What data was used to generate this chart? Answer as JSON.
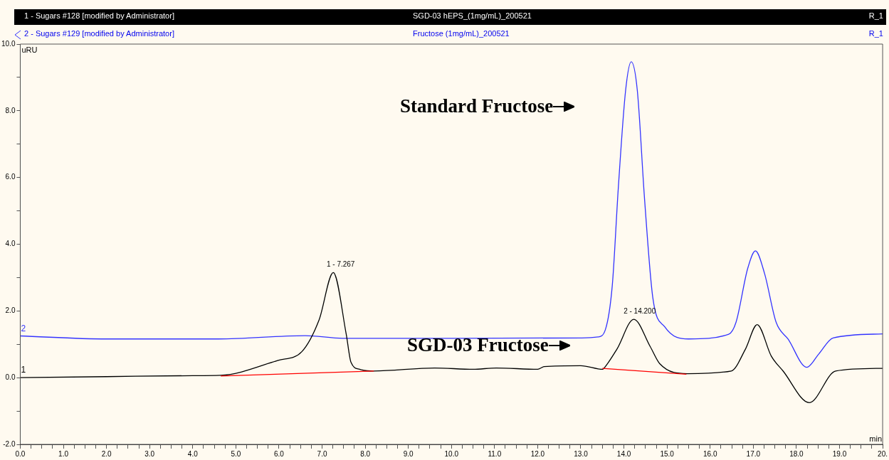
{
  "chart_data": {
    "type": "line",
    "xlabel": "min",
    "ylabel": "uRU",
    "annotations": [
      "1 - Sugars #128 [modified by Administrator]",
      "SGD-03 hEPS_(1mg/mL)_200521",
      "R_1",
      "2 - Sugars #129 [modified by Administrator]",
      "Fructose (1mg/mL)_200521",
      "R_1",
      {
        "text": "1 - 7.267",
        "x": 7.267,
        "y": 3.15
      },
      {
        "text": "2 - 14.200",
        "x": 14.2,
        "y": 1.75
      },
      "Standard Fructose",
      "SGD-03 Fructose"
    ],
    "xlim": [
      0,
      20
    ],
    "ylim": [
      -2,
      10
    ],
    "xticks": [
      {
        "value": 0,
        "label": "0.0"
      },
      {
        "value": 0.25,
        "label": null
      },
      {
        "value": 0.5,
        "label": null
      },
      {
        "value": 0.75,
        "label": null
      },
      {
        "value": 1,
        "label": "1.0"
      },
      {
        "value": 1.25,
        "label": null
      },
      {
        "value": 1.5,
        "label": null
      },
      {
        "value": 1.75,
        "label": null
      },
      {
        "value": 2,
        "label": "2.0"
      },
      {
        "value": 2.25,
        "label": null
      },
      {
        "value": 2.5,
        "label": null
      },
      {
        "value": 2.75,
        "label": null
      },
      {
        "value": 3,
        "label": "3.0"
      },
      {
        "value": 3.25,
        "label": null
      },
      {
        "value": 3.5,
        "label": null
      },
      {
        "value": 3.75,
        "label": null
      },
      {
        "value": 4,
        "label": "4.0"
      },
      {
        "value": 4.25,
        "label": null
      },
      {
        "value": 4.5,
        "label": null
      },
      {
        "value": 4.75,
        "label": null
      },
      {
        "value": 5,
        "label": "5.0"
      },
      {
        "value": 5.25,
        "label": null
      },
      {
        "value": 5.5,
        "label": null
      },
      {
        "value": 5.75,
        "label": null
      },
      {
        "value": 6,
        "label": "6.0"
      },
      {
        "value": 6.25,
        "label": null
      },
      {
        "value": 6.5,
        "label": null
      },
      {
        "value": 6.75,
        "label": null
      },
      {
        "value": 7,
        "label": "7.0"
      },
      {
        "value": 7.25,
        "label": null
      },
      {
        "value": 7.5,
        "label": null
      },
      {
        "value": 7.75,
        "label": null
      },
      {
        "value": 8,
        "label": "8.0"
      },
      {
        "value": 8.25,
        "label": null
      },
      {
        "value": 8.5,
        "label": null
      },
      {
        "value": 8.75,
        "label": null
      },
      {
        "value": 9,
        "label": "9.0"
      },
      {
        "value": 9.25,
        "label": null
      },
      {
        "value": 9.5,
        "label": null
      },
      {
        "value": 9.75,
        "label": null
      },
      {
        "value": 10,
        "label": "10.0"
      },
      {
        "value": 10.25,
        "label": null
      },
      {
        "value": 10.5,
        "label": null
      },
      {
        "value": 10.75,
        "label": null
      },
      {
        "value": 11,
        "label": "11.0"
      },
      {
        "value": 11.25,
        "label": null
      },
      {
        "value": 11.5,
        "label": null
      },
      {
        "value": 11.75,
        "label": null
      },
      {
        "value": 12,
        "label": "12.0"
      },
      {
        "value": 12.25,
        "label": null
      },
      {
        "value": 12.5,
        "label": null
      },
      {
        "value": 12.75,
        "label": null
      },
      {
        "value": 13,
        "label": "13.0"
      },
      {
        "value": 13.25,
        "label": null
      },
      {
        "value": 13.5,
        "label": null
      },
      {
        "value": 13.75,
        "label": null
      },
      {
        "value": 14,
        "label": "14.0"
      },
      {
        "value": 14.25,
        "label": null
      },
      {
        "value": 14.5,
        "label": null
      },
      {
        "value": 14.75,
        "label": null
      },
      {
        "value": 15,
        "label": "15.0"
      },
      {
        "value": 15.25,
        "label": null
      },
      {
        "value": 15.5,
        "label": null
      },
      {
        "value": 15.75,
        "label": null
      },
      {
        "value": 16,
        "label": "16.0"
      },
      {
        "value": 16.25,
        "label": null
      },
      {
        "value": 16.5,
        "label": null
      },
      {
        "value": 16.75,
        "label": null
      },
      {
        "value": 17,
        "label": "17.0"
      },
      {
        "value": 17.25,
        "label": null
      },
      {
        "value": 17.5,
        "label": null
      },
      {
        "value": 17.75,
        "label": null
      },
      {
        "value": 18,
        "label": "18.0"
      },
      {
        "value": 18.25,
        "label": null
      },
      {
        "value": 18.5,
        "label": null
      },
      {
        "value": 18.75,
        "label": null
      },
      {
        "value": 19,
        "label": "19.0"
      },
      {
        "value": 19.25,
        "label": null
      },
      {
        "value": 19.5,
        "label": null
      },
      {
        "value": 19.75,
        "label": null
      },
      {
        "value": 20,
        "label": "20."
      }
    ],
    "yticks": [
      {
        "value": -2,
        "label": "-2.0"
      },
      {
        "value": -1,
        "label": null
      },
      {
        "value": 0,
        "label": "0.0"
      },
      {
        "value": 1,
        "label": null
      },
      {
        "value": 2,
        "label": "2.0"
      },
      {
        "value": 3,
        "label": null
      },
      {
        "value": 4,
        "label": "4.0"
      },
      {
        "value": 5,
        "label": null
      },
      {
        "value": 6,
        "label": "6.0"
      },
      {
        "value": 7,
        "label": null
      },
      {
        "value": 8,
        "label": "8.0"
      },
      {
        "value": 9,
        "label": null
      },
      {
        "value": 10,
        "label": "10.0"
      }
    ],
    "grid": false,
    "legend": false,
    "marker": "none",
    "line_style": "solid",
    "series": [
      {
        "name": "2",
        "color": "#3333ff",
        "x": [
          0,
          2,
          4.6,
          6.61,
          7.48,
          10,
          13.02,
          13.4,
          13.57,
          13.73,
          13.87,
          14.04,
          14.17,
          14.31,
          14.48,
          14.67,
          14.95,
          15.5,
          16.43,
          16.6,
          16.87,
          17.05,
          17.26,
          17.53,
          17.81,
          18.24,
          18.52,
          18.85,
          20
        ],
        "values": [
          1.25,
          1.16,
          1.16,
          1.26,
          1.18,
          1.18,
          1.19,
          1.22,
          1.44,
          2.76,
          5.69,
          8.62,
          9.47,
          8.62,
          5.33,
          2.4,
          1.52,
          1.16,
          1.3,
          1.66,
          3.27,
          3.8,
          3.13,
          1.66,
          1.15,
          0.31,
          0.71,
          1.19,
          1.31
        ]
      },
      {
        "name": "1",
        "color": "#000000",
        "x": [
          0,
          2,
          4,
          4.64,
          5.98,
          6.53,
          6.93,
          7.26,
          7.56,
          7.67,
          7.87,
          8.2,
          9.61,
          10.5,
          11.04,
          12,
          12.15,
          13,
          13.51,
          13.53,
          13.84,
          14.23,
          14.61,
          14.83,
          15.47,
          16.49,
          16.82,
          17.09,
          17.42,
          17.69,
          18.3,
          18.91,
          20
        ],
        "values": [
          0,
          0.03,
          0.06,
          0.07,
          0.52,
          0.78,
          1.73,
          3.15,
          1.3,
          0.46,
          0.25,
          0.2,
          0.29,
          0.25,
          0.29,
          0.25,
          0.33,
          0.36,
          0.25,
          0.27,
          0.86,
          1.75,
          0.93,
          0.42,
          0.12,
          0.2,
          0.86,
          1.59,
          0.64,
          0.2,
          -0.75,
          0.2,
          0.28
        ]
      },
      {
        "color": "#ff0000",
        "x": [
          4.65,
          8.2
        ],
        "values": [
          0.05,
          0.2
        ]
      },
      {
        "color": "#ff0000",
        "x": [
          13.5,
          15.45
        ],
        "values": [
          0.28,
          0.1
        ]
      }
    ]
  }
}
